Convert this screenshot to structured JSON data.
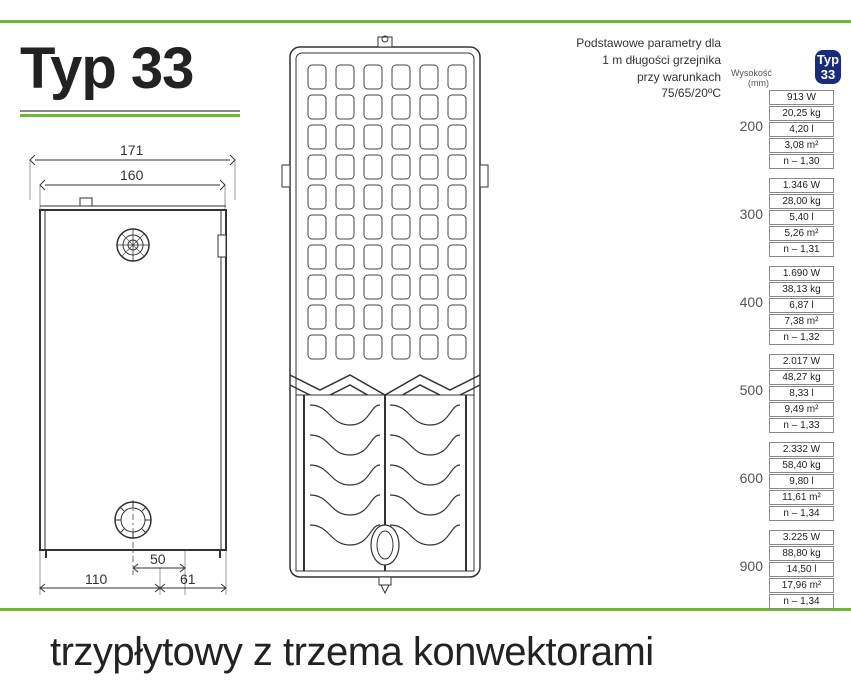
{
  "accent_green": "#6fb82e",
  "badge_bg": "#1a2b7a",
  "badge_fg": "#ffffff",
  "line_color": "#666666",
  "title": "Typ 33",
  "subtitle": "trzypłytowy z trzema konwektorami",
  "params": {
    "line1": "Podstawowe parametry dla",
    "line2": "1 m długości grzejnika",
    "line3": "przy warunkach",
    "line4": "75/65/20ºC"
  },
  "dimensions": {
    "outer_width": "171",
    "inner_width": "160",
    "bottom_left": "110",
    "bottom_right": "61",
    "center_offset": "50"
  },
  "spec_header_label": "Wysokość (mm)",
  "spec_header_badge": "Typ 33",
  "spec_groups": [
    {
      "height": "200",
      "rows": [
        "913 W",
        "20,25 kg",
        "4,20 l",
        "3,08 m²",
        "n – 1,30"
      ]
    },
    {
      "height": "300",
      "rows": [
        "1.346 W",
        "28,00 kg",
        "5,40 l",
        "5,26 m²",
        "n – 1,31"
      ]
    },
    {
      "height": "400",
      "rows": [
        "1.690 W",
        "38,13 kg",
        "6,87 l",
        "7,38 m²",
        "n – 1,32"
      ]
    },
    {
      "height": "500",
      "rows": [
        "2.017 W",
        "48,27 kg",
        "8,33 l",
        "9,49 m²",
        "n – 1,33"
      ]
    },
    {
      "height": "600",
      "rows": [
        "2.332 W",
        "58,40 kg",
        "9,80 l",
        "11,61 m²",
        "n – 1,34"
      ]
    },
    {
      "height": "900",
      "rows": [
        "3.225 W",
        "88,80 kg",
        "14,50 l",
        "17,96 m²",
        "n – 1,34"
      ]
    }
  ]
}
